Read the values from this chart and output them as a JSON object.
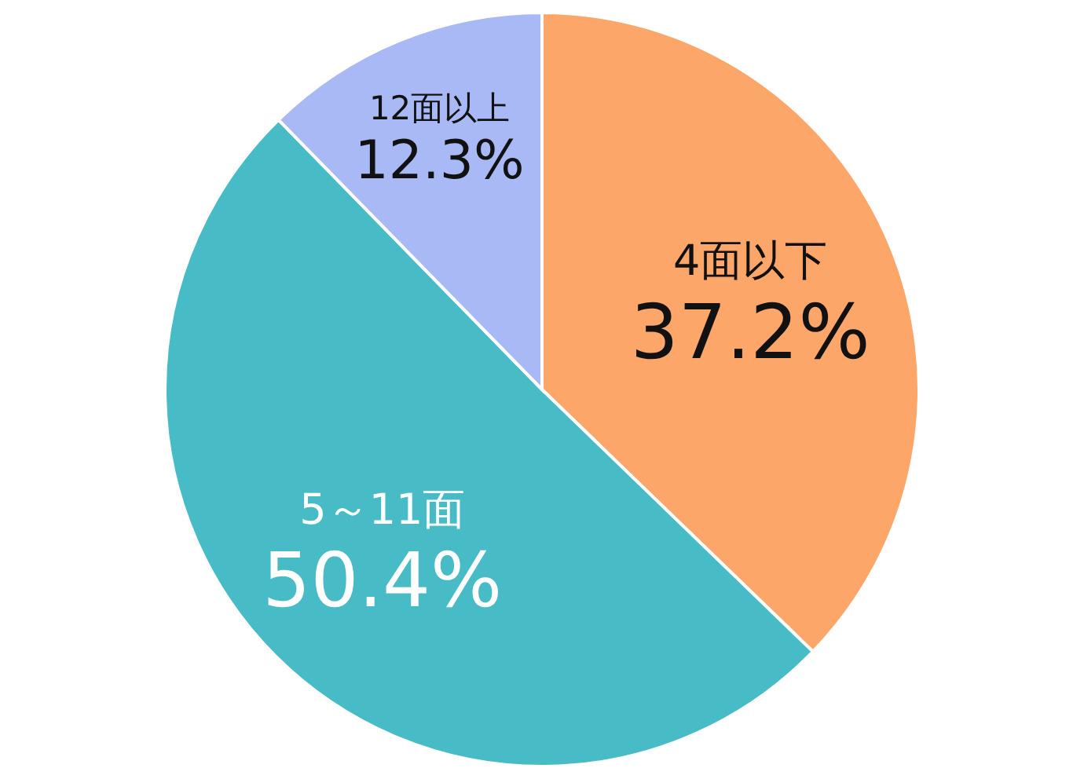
{
  "chart_data": {
    "type": "pie",
    "categories": [
      "4面以下",
      "5～11面",
      "12面以上"
    ],
    "values": [
      37.2,
      50.4,
      12.3
    ],
    "value_labels": [
      "37.2%",
      "50.4%",
      "12.3%"
    ],
    "colors": [
      "#fca66a",
      "#47bcc6",
      "#a9b9f5"
    ]
  }
}
